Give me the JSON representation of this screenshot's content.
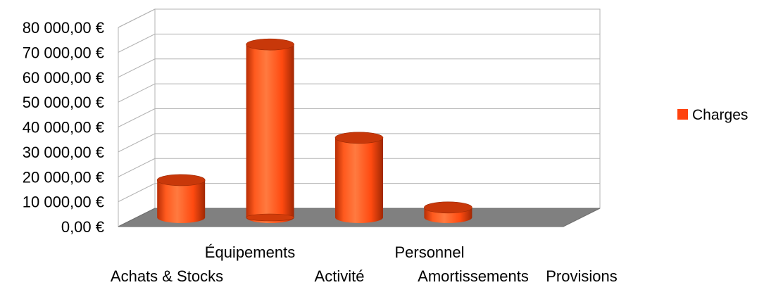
{
  "chart_data": {
    "type": "bar",
    "variant": "3d-cylinder",
    "title": "",
    "xlabel": "",
    "ylabel": "",
    "categories": [
      "Achats & Stocks",
      "Équipements",
      "Activité",
      "Personnel",
      "Amortissements",
      "Provisions"
    ],
    "series": [
      {
        "name": "Charges",
        "color": "#ff420e",
        "values": [
          15000,
          null,
          69500,
          32000,
          null,
          4000
        ]
      }
    ],
    "ylim": [
      0,
      80000
    ],
    "yticks": [
      0,
      10000,
      20000,
      30000,
      40000,
      50000,
      60000,
      70000,
      80000
    ],
    "ytick_labels": [
      "0,00 €",
      "10 000,00 €",
      "20 000,00 €",
      "30 000,00 €",
      "40 000,00 €",
      "50 000,00 €",
      "60 000,00 €",
      "70 000,00 €",
      "80 000,00 €"
    ],
    "grid": true,
    "legend": "right",
    "floor_color": "#808080"
  }
}
